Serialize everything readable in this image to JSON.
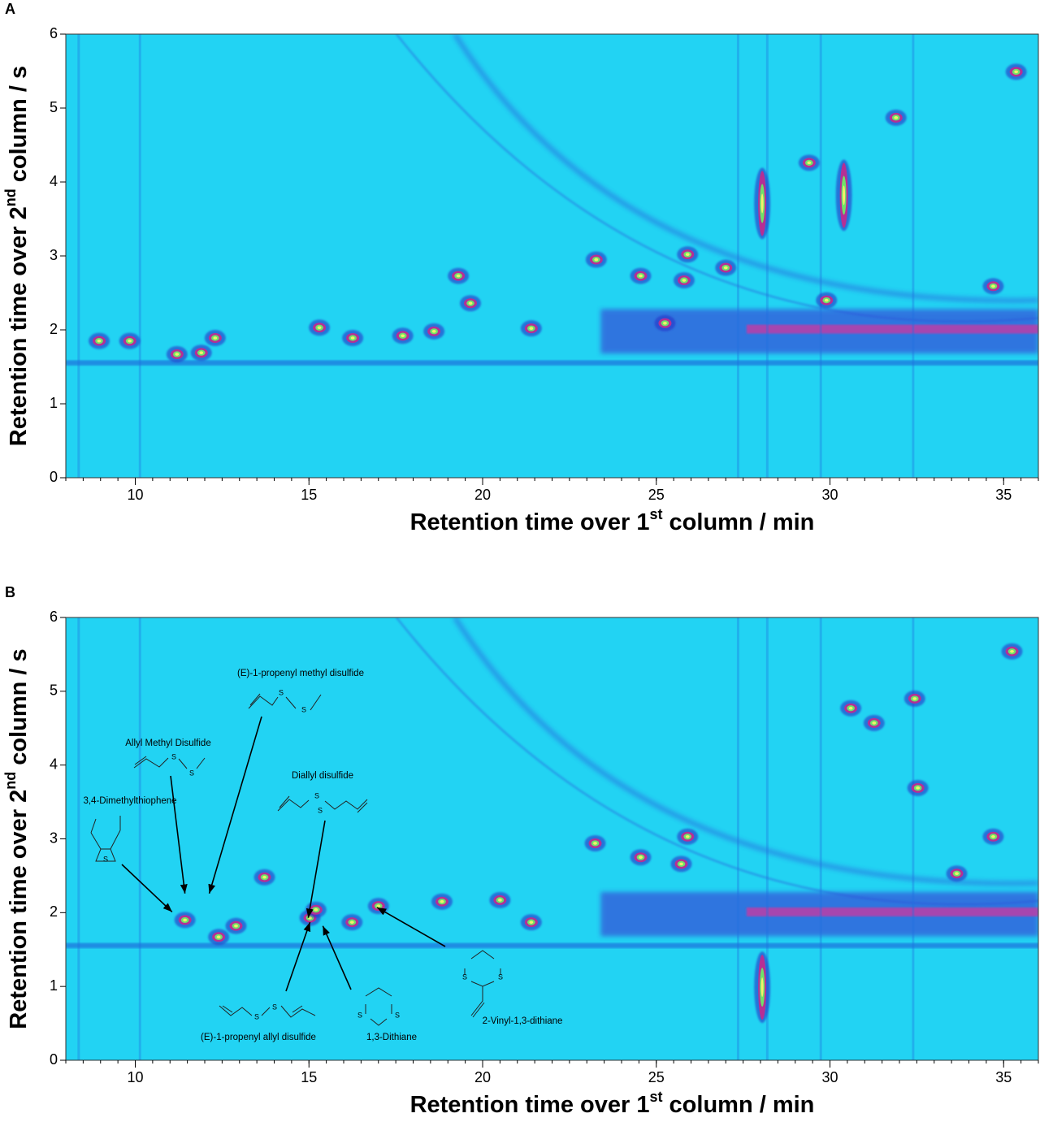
{
  "chart_data": [
    {
      "type": "contour",
      "panel": "A",
      "x_label": {
        "text": "Retention time over 1",
        "sup": "st",
        "tail": " column / min"
      },
      "y_label": {
        "text": "Retention time over 2",
        "sup": "nd",
        "tail": " column / s"
      },
      "xlim": [
        8,
        36
      ],
      "ylim": [
        0,
        6
      ],
      "xticks": [
        10,
        15,
        20,
        25,
        30,
        35
      ],
      "yticks": [
        0,
        1,
        2,
        3,
        4,
        5,
        6
      ],
      "background": "#22d3f3",
      "peak_colors": [
        "#b52f95",
        "#6fe26a",
        "#f4f06a"
      ],
      "peaks": {
        "x": [
          8.96,
          9.84,
          11.2,
          11.9,
          12.3,
          15.3,
          16.26,
          17.7,
          18.6,
          19.3,
          19.65,
          21.4,
          23.27,
          24.55,
          25.25,
          25.9,
          25.8,
          27.0,
          28.05,
          29.4,
          30.4,
          31.9,
          34.7,
          35.36,
          29.9
        ],
        "y": [
          1.85,
          1.85,
          1.67,
          1.69,
          1.89,
          2.03,
          1.89,
          1.92,
          1.98,
          2.73,
          2.36,
          2.02,
          2.95,
          2.73,
          2.09,
          3.02,
          2.67,
          2.84,
          3.71,
          4.26,
          3.82,
          4.87,
          2.59,
          5.49,
          2.4
        ]
      }
    },
    {
      "type": "contour",
      "panel": "B",
      "x_label": {
        "text": "Retention time over 1",
        "sup": "st",
        "tail": " column / min"
      },
      "y_label": {
        "text": "Retention time over 2",
        "sup": "nd",
        "tail": " column / s"
      },
      "xlim": [
        8,
        36
      ],
      "ylim": [
        0,
        6
      ],
      "xticks": [
        10,
        15,
        20,
        25,
        30,
        35
      ],
      "yticks": [
        0,
        1,
        2,
        3,
        4,
        5,
        6
      ],
      "background": "#22d3f3",
      "peak_colors": [
        "#b52f95",
        "#6fe26a",
        "#f4f06a"
      ],
      "peaks": {
        "x": [
          11.43,
          12.4,
          12.9,
          13.72,
          15.03,
          15.2,
          16.24,
          17.0,
          18.83,
          20.5,
          21.4,
          23.24,
          24.55,
          25.72,
          25.9,
          30.6,
          31.27,
          32.44,
          32.53,
          34.7,
          35.24,
          33.65,
          28.05
        ],
        "y": [
          1.9,
          1.67,
          1.82,
          2.48,
          1.93,
          2.04,
          1.87,
          2.09,
          2.15,
          2.17,
          1.87,
          2.94,
          2.75,
          2.66,
          3.03,
          4.77,
          4.57,
          4.9,
          3.69,
          3.03,
          5.54,
          2.53,
          0.99
        ]
      },
      "annotations": [
        {
          "text": "3,4-Dimethylthiophene",
          "x": 11.06,
          "y": 2.01,
          "atoms": [
            "S"
          ]
        },
        {
          "text": "Allyl Methyl Disulfide",
          "x": 11.43,
          "y": 2.26,
          "atoms": [
            "S",
            "S"
          ]
        },
        {
          "text": "(E)-1-propenyl methyl disulfide",
          "x": 12.13,
          "y": 2.26,
          "atoms": [
            "S",
            "S"
          ]
        },
        {
          "text": "Diallyl disulfide",
          "x": 14.98,
          "y": 1.93,
          "atoms": [
            "S",
            "S"
          ]
        },
        {
          "text": "(E)-1-propenyl allyl disulfide",
          "x": 15.03,
          "y": 1.87,
          "atoms": [
            "S",
            "S"
          ]
        },
        {
          "text": "1,3-Dithiane",
          "x": 15.4,
          "y": 1.82,
          "atoms": [
            "S",
            "S"
          ]
        },
        {
          "text": "2-Vinyl-1,3-dithiane",
          "x": 16.96,
          "y": 2.07,
          "atoms": [
            "S",
            "S"
          ]
        }
      ]
    }
  ]
}
